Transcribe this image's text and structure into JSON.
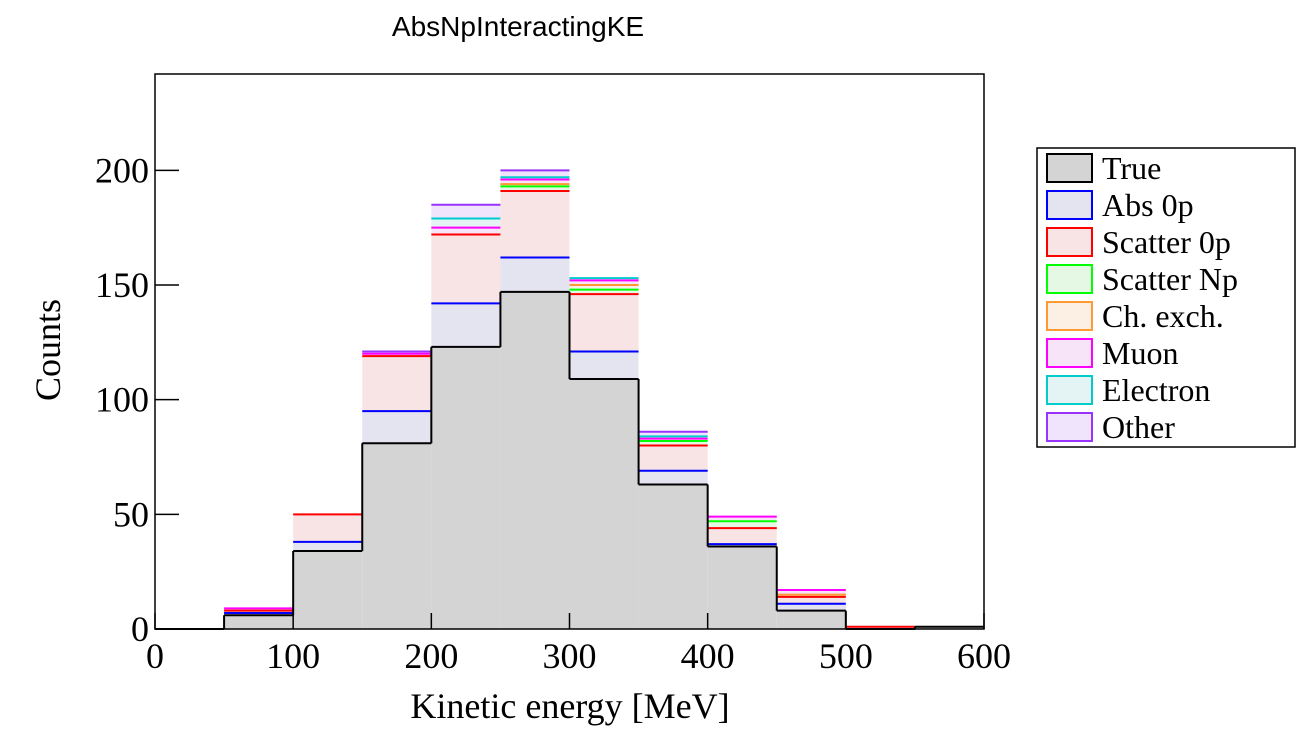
{
  "chart_data": {
    "type": "histogram",
    "title": "AbsNpInteractingKE",
    "x_label": "Kinetic energy [MeV]",
    "y_label": "Counts",
    "stacked": true,
    "bins": [
      0,
      50,
      100,
      150,
      200,
      250,
      300,
      350,
      400,
      450,
      500,
      550,
      600
    ],
    "series": [
      {
        "name": "True",
        "color": "#000000",
        "fill": "#d4d4d4",
        "values": [
          0,
          6,
          34,
          81,
          123,
          147,
          109,
          63,
          36,
          8,
          0,
          1
        ]
      },
      {
        "name": "Abs 0p",
        "color": "#0000ff",
        "fill": "#e4e4f0",
        "values": [
          0,
          1,
          4,
          14,
          19,
          15,
          12,
          6,
          1,
          3,
          0,
          0
        ]
      },
      {
        "name": "Scatter 0p",
        "color": "#ff0000",
        "fill": "#f8e4e4",
        "values": [
          0,
          1,
          12,
          24,
          30,
          29,
          25,
          11,
          7,
          3,
          1,
          0
        ]
      },
      {
        "name": "Scatter Np",
        "color": "#00ff00",
        "fill": "#e4f8e4",
        "values": [
          0,
          0,
          0,
          0,
          0,
          2,
          2,
          2,
          3,
          0,
          0,
          0
        ]
      },
      {
        "name": "Ch. exch.",
        "color": "#ff9933",
        "fill": "#fcf0e4",
        "values": [
          0,
          0,
          0,
          0,
          0,
          1,
          2,
          0,
          0,
          1,
          0,
          0
        ]
      },
      {
        "name": "Muon",
        "color": "#ff00ff",
        "fill": "#f8e4f8",
        "values": [
          0,
          1,
          0,
          1,
          3,
          2,
          2,
          1,
          2,
          2,
          0,
          0
        ]
      },
      {
        "name": "Electron",
        "color": "#00cccc",
        "fill": "#e4f4f4",
        "values": [
          0,
          0,
          0,
          0,
          4,
          1,
          1,
          1,
          0,
          0,
          0,
          0
        ]
      },
      {
        "name": "Other",
        "color": "#9933ff",
        "fill": "#f0e4fc",
        "values": [
          0,
          0,
          0,
          1,
          6,
          3,
          0,
          2,
          0,
          0,
          0,
          0
        ]
      }
    ],
    "xlim": [
      0,
      600
    ],
    "xticks": [
      0,
      100,
      200,
      300,
      400,
      500,
      600
    ],
    "ylim": [
      0,
      242
    ],
    "yticks": [
      0,
      50,
      100,
      150,
      200
    ],
    "legend": "right"
  }
}
